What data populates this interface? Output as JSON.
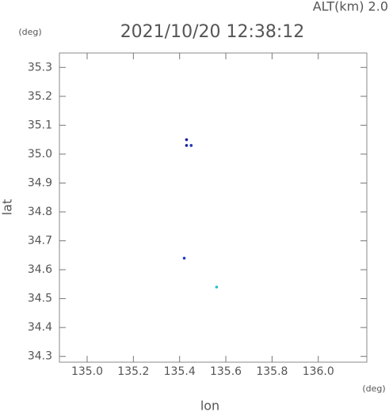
{
  "chart_data": {
    "type": "scatter",
    "title": "2021/10/20 12:38:12",
    "annotation": "ALT(km) 2.0",
    "x_label": "lon",
    "y_label": "lat",
    "x_unit": "(deg)",
    "y_unit": "(deg)",
    "x": [
      135.43,
      135.43,
      135.45,
      135.45,
      135.42,
      135.56
    ],
    "y": [
      35.05,
      35.03,
      35.03,
      35.03,
      34.64,
      34.54
    ],
    "colors": [
      "#1c1c9c",
      "#1c1c9c",
      "#1c1c9c",
      "#2040c0",
      "#2040d0",
      "#20c0d0"
    ],
    "xlim": [
      134.88,
      136.21
    ],
    "ylim": [
      34.28,
      35.35
    ],
    "xticks": [
      {
        "value": 135.0,
        "label": "135.0"
      },
      135.2,
      135.4,
      135.6,
      135.8,
      {
        "value": 136.0,
        "label": "136.0"
      }
    ],
    "yticks": [
      34.3,
      34.4,
      34.5,
      34.6,
      34.7,
      34.8,
      34.9,
      {
        "value": 35.0,
        "label": "35.0"
      },
      35.1,
      35.2,
      35.3
    ]
  }
}
